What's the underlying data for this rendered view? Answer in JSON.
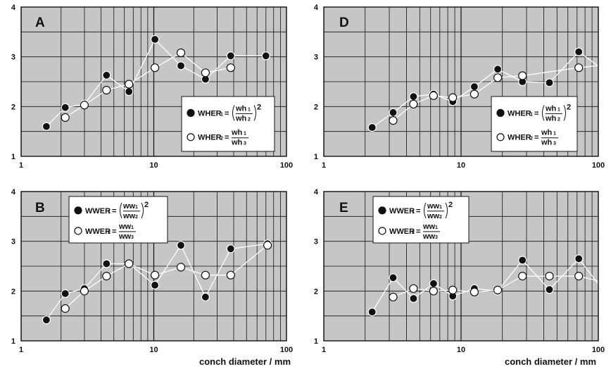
{
  "figure": {
    "xlabel": "conch diameter / mm"
  },
  "chart_data": [
    {
      "type": "line",
      "panel": "A",
      "xscale": "log",
      "xlim": [
        1,
        100
      ],
      "ylim": [
        1,
        4
      ],
      "x_ticks": [
        "1",
        "10",
        "100"
      ],
      "y_ticks": [
        "1",
        "2",
        "3",
        "4"
      ],
      "legend_position": "bottom-right",
      "legend": {
        "series1": {
          "label_main": "WHER",
          "label_sub": "1",
          "eq": "=",
          "num_main": "wh",
          "num_sub": "1",
          "den_main": "wh",
          "den_sub": "2",
          "power": "2"
        },
        "series2": {
          "label_main": "WHER",
          "label_sub": "2",
          "eq": "=",
          "num_main": "wh",
          "num_sub": "1",
          "den_main": "wh",
          "den_sub": "3"
        }
      },
      "series": [
        {
          "marker": "filled",
          "x": [
            1.55,
            2.15,
            3.0,
            4.4,
            6.5,
            10.2,
            16.0,
            24.5,
            38.0,
            70.0
          ],
          "y": [
            1.6,
            1.98,
            2.05,
            2.63,
            2.3,
            3.35,
            2.82,
            2.55,
            3.02,
            3.02
          ]
        },
        {
          "marker": "open",
          "x": [
            2.15,
            3.0,
            4.4,
            6.5,
            10.2,
            16.0,
            24.5,
            38.0
          ],
          "y": [
            1.78,
            2.03,
            2.33,
            2.45,
            2.78,
            3.08,
            2.68,
            2.78
          ]
        }
      ]
    },
    {
      "type": "line",
      "panel": "D",
      "xscale": "log",
      "xlim": [
        1,
        100
      ],
      "ylim": [
        1,
        4
      ],
      "x_ticks": [
        "1",
        "10",
        "100"
      ],
      "y_ticks": [
        "1",
        "2",
        "3",
        "4"
      ],
      "legend_position": "bottom-right",
      "legend": {
        "series1": {
          "label_main": "WHER",
          "label_sub": "1",
          "eq": "=",
          "num_main": "wh",
          "num_sub": "1",
          "den_main": "wh",
          "den_sub": "2",
          "power": "2"
        },
        "series2": {
          "label_main": "WHER",
          "label_sub": "2",
          "eq": "=",
          "num_main": "wh",
          "num_sub": "1",
          "den_main": "wh",
          "den_sub": "3"
        }
      },
      "series": [
        {
          "marker": "filled",
          "x": [
            2.25,
            3.2,
            4.5,
            6.3,
            8.7,
            12.5,
            18.5,
            28.0,
            44.0,
            72.0,
            125.0
          ],
          "y": [
            1.58,
            1.88,
            2.2,
            2.25,
            2.1,
            2.4,
            2.75,
            2.5,
            2.48,
            3.1,
            2.62
          ]
        },
        {
          "marker": "open",
          "x": [
            3.2,
            4.5,
            6.3,
            8.7,
            12.5,
            18.5,
            28.0,
            72.0,
            120.0
          ],
          "y": [
            1.72,
            2.05,
            2.22,
            2.18,
            2.25,
            2.58,
            2.62,
            2.78,
            2.85
          ]
        }
      ]
    },
    {
      "type": "line",
      "panel": "B",
      "xscale": "log",
      "xlim": [
        1,
        100
      ],
      "ylim": [
        1,
        4
      ],
      "x_ticks": [
        "1",
        "10",
        "100"
      ],
      "y_ticks": [
        "1",
        "2",
        "3",
        "4"
      ],
      "legend_position": "top-left",
      "legend": {
        "series1": {
          "label_main": "WWER",
          "label_sub": "1",
          "eq": "=",
          "num_main": "ww",
          "num_sub": "1",
          "den_main": "ww",
          "den_sub": "2",
          "power": "2"
        },
        "series2": {
          "label_main": "WWER",
          "label_sub": "2",
          "eq": "=",
          "num_main": "ww",
          "num_sub": "1",
          "den_main": "ww",
          "den_sub": "3"
        }
      },
      "series": [
        {
          "marker": "filled",
          "x": [
            1.55,
            2.15,
            3.0,
            4.4,
            6.5,
            10.2,
            16.0,
            24.5,
            38.0,
            72.0
          ],
          "y": [
            1.42,
            1.95,
            2.05,
            2.55,
            2.55,
            2.12,
            2.92,
            1.88,
            2.85,
            2.95
          ]
        },
        {
          "marker": "open",
          "x": [
            2.15,
            3.0,
            4.4,
            6.5,
            10.2,
            16.0,
            24.5,
            38.0,
            72.0
          ],
          "y": [
            1.65,
            2.0,
            2.3,
            2.55,
            2.32,
            2.48,
            2.32,
            2.32,
            2.92
          ]
        }
      ]
    },
    {
      "type": "line",
      "panel": "E",
      "xscale": "log",
      "xlim": [
        1,
        100
      ],
      "ylim": [
        1,
        4
      ],
      "x_ticks": [
        "1",
        "10",
        "100"
      ],
      "y_ticks": [
        "1",
        "2",
        "3",
        "4"
      ],
      "legend_position": "top-left",
      "legend": {
        "series1": {
          "label_main": "WWER",
          "label_sub": "1",
          "eq": "=",
          "num_main": "ww",
          "num_sub": "1",
          "den_main": "ww",
          "den_sub": "2",
          "power": "2"
        },
        "series2": {
          "label_main": "WWER",
          "label_sub": "2",
          "eq": "=",
          "num_main": "ww",
          "num_sub": "1",
          "den_main": "ww",
          "den_sub": "3"
        }
      },
      "series": [
        {
          "marker": "filled",
          "x": [
            2.25,
            3.2,
            4.5,
            6.3,
            8.7,
            12.5,
            18.5,
            28.0,
            44.0,
            72.0,
            125.0
          ],
          "y": [
            1.58,
            2.27,
            1.85,
            2.15,
            1.9,
            2.05,
            2.0,
            2.62,
            2.03,
            2.65,
            1.8
          ]
        },
        {
          "marker": "open",
          "x": [
            3.2,
            4.5,
            6.3,
            8.7,
            12.5,
            18.5,
            28.0,
            44.0,
            72.0,
            120.0
          ],
          "y": [
            1.88,
            2.05,
            2.0,
            2.02,
            1.98,
            2.02,
            2.3,
            2.3,
            2.3,
            2.15
          ]
        }
      ]
    }
  ]
}
